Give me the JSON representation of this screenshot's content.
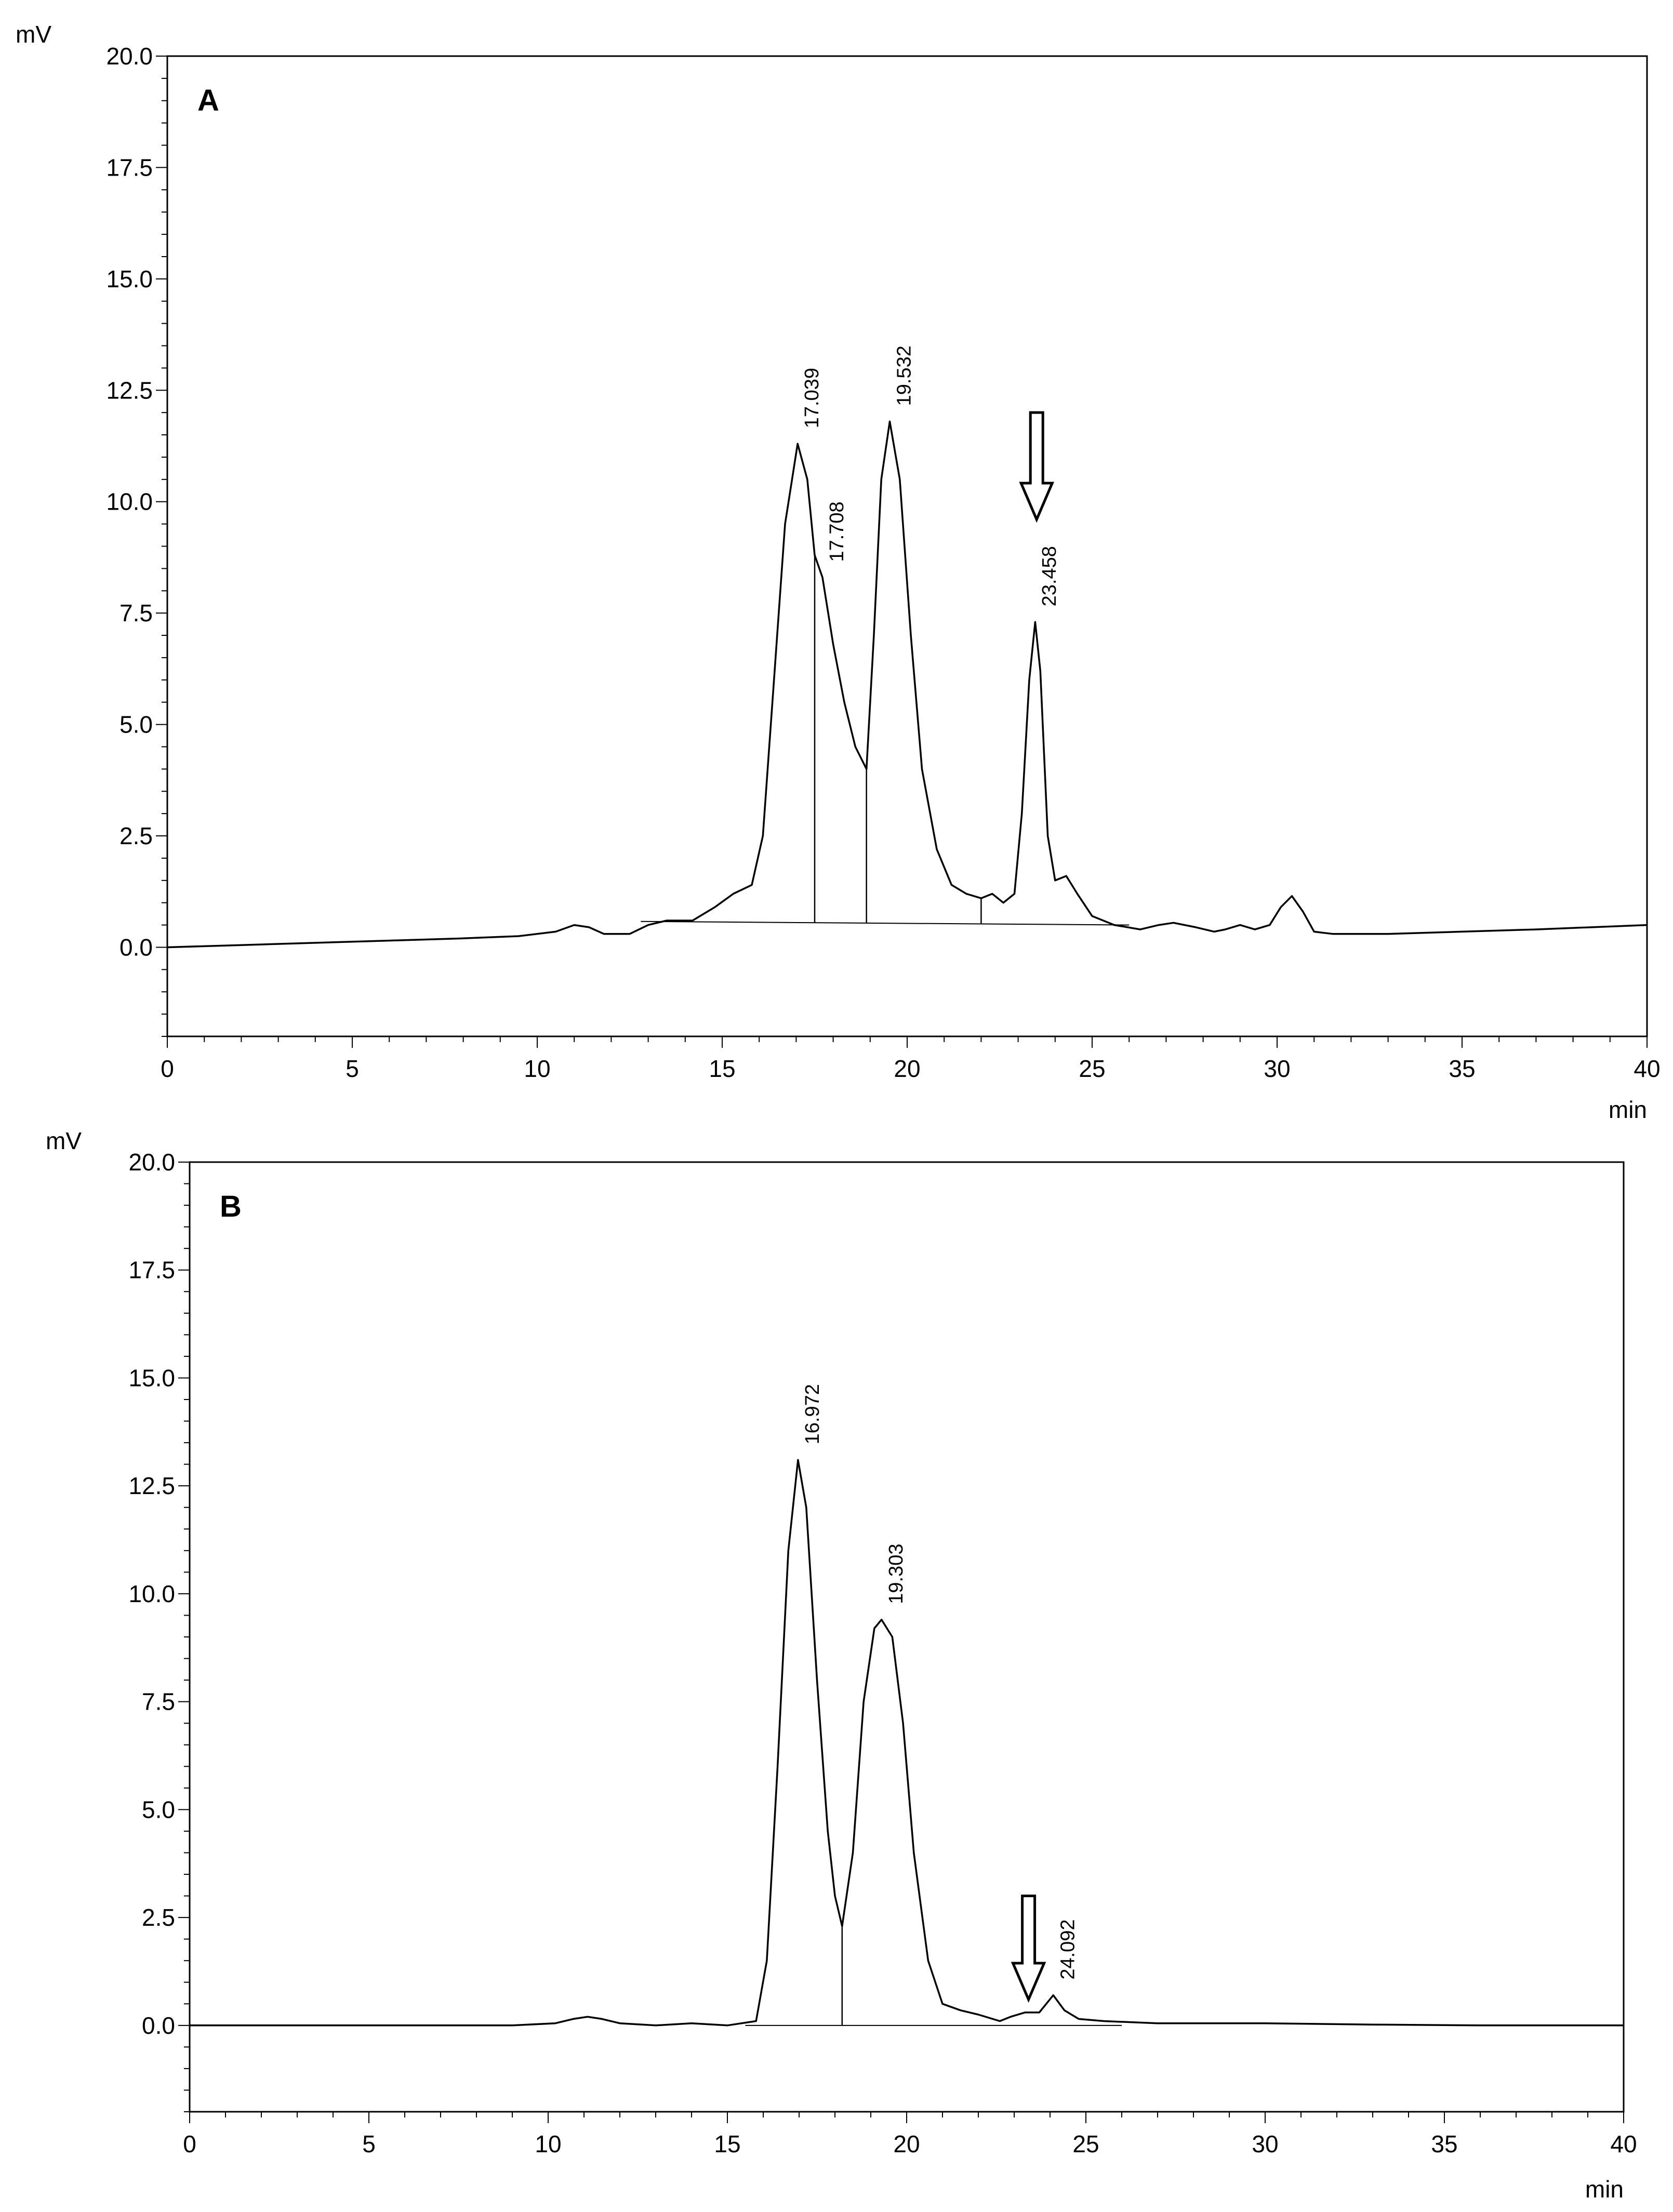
{
  "chart_data": [
    {
      "type": "line",
      "panel_label": "A",
      "y_unit": "mV",
      "x_unit": "min",
      "xlim": [
        0,
        40
      ],
      "ylim": [
        -2,
        20
      ],
      "x_ticks": [
        0,
        5,
        10,
        15,
        20,
        25,
        30,
        35,
        40
      ],
      "x_tick_labels": [
        "0",
        "5",
        "10",
        "15",
        "20",
        "25",
        "30",
        "35",
        "40"
      ],
      "y_ticks": [
        0,
        2.5,
        5,
        7.5,
        10,
        12.5,
        15,
        17.5,
        20
      ],
      "y_tick_labels": [
        "0.0",
        "2.5",
        "5.0",
        "7.5",
        "10.0",
        "12.5",
        "15.0",
        "17.5",
        "20.0"
      ],
      "grid": false,
      "line_color": "#000000",
      "series": [
        {
          "values": [
            [
              0,
              0
            ],
            [
              2,
              0.05
            ],
            [
              4,
              0.1
            ],
            [
              6,
              0.15
            ],
            [
              8,
              0.2
            ],
            [
              9.5,
              0.25
            ],
            [
              10.5,
              0.35
            ],
            [
              11,
              0.5
            ],
            [
              11.4,
              0.45
            ],
            [
              11.8,
              0.3
            ],
            [
              12.5,
              0.3
            ],
            [
              13,
              0.5
            ],
            [
              13.5,
              0.6
            ],
            [
              14.2,
              0.6
            ],
            [
              14.8,
              0.9
            ],
            [
              15.3,
              1.2
            ],
            [
              15.8,
              1.4
            ],
            [
              16.1,
              2.5
            ],
            [
              16.4,
              6.0
            ],
            [
              16.7,
              9.5
            ],
            [
              17.04,
              11.3
            ],
            [
              17.3,
              10.5
            ],
            [
              17.5,
              8.8
            ],
            [
              17.71,
              8.3
            ],
            [
              18.0,
              6.8
            ],
            [
              18.3,
              5.5
            ],
            [
              18.6,
              4.5
            ],
            [
              18.9,
              4.0
            ],
            [
              19.1,
              7.0
            ],
            [
              19.3,
              10.5
            ],
            [
              19.53,
              11.8
            ],
            [
              19.8,
              10.5
            ],
            [
              20.1,
              7.0
            ],
            [
              20.4,
              4.0
            ],
            [
              20.8,
              2.2
            ],
            [
              21.2,
              1.4
            ],
            [
              21.6,
              1.2
            ],
            [
              22.0,
              1.1
            ],
            [
              22.3,
              1.2
            ],
            [
              22.6,
              1.0
            ],
            [
              22.9,
              1.2
            ],
            [
              23.1,
              3.0
            ],
            [
              23.3,
              6.0
            ],
            [
              23.46,
              7.3
            ],
            [
              23.6,
              6.2
            ],
            [
              23.8,
              2.5
            ],
            [
              24.0,
              1.5
            ],
            [
              24.3,
              1.6
            ],
            [
              24.6,
              1.2
            ],
            [
              25.0,
              0.7
            ],
            [
              25.6,
              0.5
            ],
            [
              26.3,
              0.4
            ],
            [
              26.8,
              0.5
            ],
            [
              27.2,
              0.55
            ],
            [
              27.5,
              0.5
            ],
            [
              27.8,
              0.45
            ],
            [
              28.3,
              0.35
            ],
            [
              28.6,
              0.4
            ],
            [
              29.0,
              0.5
            ],
            [
              29.4,
              0.4
            ],
            [
              29.8,
              0.5
            ],
            [
              30.1,
              0.9
            ],
            [
              30.4,
              1.15
            ],
            [
              30.7,
              0.8
            ],
            [
              31.0,
              0.35
            ],
            [
              31.5,
              0.3
            ],
            [
              33,
              0.3
            ],
            [
              35,
              0.35
            ],
            [
              37,
              0.4
            ],
            [
              40,
              0.5
            ]
          ]
        }
      ],
      "baselines": [
        [
          [
            12.8,
            0.58
          ],
          [
            26.0,
            0.5
          ]
        ]
      ],
      "drop_lines_x": [
        17.5,
        18.9,
        22.0
      ],
      "peak_labels": [
        {
          "x": 17.039,
          "y": 11.3,
          "text": "17.039"
        },
        {
          "x": 17.708,
          "y": 8.3,
          "text": "17.708"
        },
        {
          "x": 19.532,
          "y": 11.8,
          "text": "19.532"
        },
        {
          "x": 23.458,
          "y": 7.3,
          "text": "23.458"
        }
      ],
      "arrow": {
        "x": 23.5,
        "y_top": 12.0,
        "y_bottom": 9.6
      }
    },
    {
      "type": "line",
      "panel_label": "B",
      "y_unit": "mV",
      "x_unit": "min",
      "xlim": [
        0,
        40
      ],
      "ylim": [
        -2,
        20
      ],
      "x_ticks": [
        0,
        5,
        10,
        15,
        20,
        25,
        30,
        35,
        40
      ],
      "x_tick_labels": [
        "0",
        "5",
        "10",
        "15",
        "20",
        "25",
        "30",
        "35",
        "40"
      ],
      "y_ticks": [
        0,
        2.5,
        5,
        7.5,
        10,
        12.5,
        15,
        17.5,
        20
      ],
      "y_tick_labels": [
        "0.0",
        "2.5",
        "5.0",
        "7.5",
        "10.0",
        "12.5",
        "15.0",
        "17.5",
        "20.0"
      ],
      "grid": false,
      "line_color": "#000000",
      "series": [
        {
          "values": [
            [
              0,
              0
            ],
            [
              5,
              0
            ],
            [
              9,
              0
            ],
            [
              10.2,
              0.05
            ],
            [
              10.7,
              0.15
            ],
            [
              11.1,
              0.2
            ],
            [
              11.5,
              0.15
            ],
            [
              12.0,
              0.05
            ],
            [
              13.0,
              0.0
            ],
            [
              14.0,
              0.05
            ],
            [
              15.0,
              0.0
            ],
            [
              15.8,
              0.1
            ],
            [
              16.1,
              1.5
            ],
            [
              16.4,
              6.0
            ],
            [
              16.7,
              11.0
            ],
            [
              16.97,
              13.1
            ],
            [
              17.2,
              12.0
            ],
            [
              17.5,
              8.0
            ],
            [
              17.8,
              4.5
            ],
            [
              18.0,
              3.0
            ],
            [
              18.2,
              2.3
            ],
            [
              18.5,
              4.0
            ],
            [
              18.8,
              7.5
            ],
            [
              19.1,
              9.2
            ],
            [
              19.3,
              9.4
            ],
            [
              19.6,
              9.0
            ],
            [
              19.9,
              7.0
            ],
            [
              20.2,
              4.0
            ],
            [
              20.6,
              1.5
            ],
            [
              21.0,
              0.5
            ],
            [
              21.5,
              0.35
            ],
            [
              22.0,
              0.25
            ],
            [
              22.6,
              0.1
            ],
            [
              22.9,
              0.2
            ],
            [
              23.3,
              0.3
            ],
            [
              23.7,
              0.3
            ],
            [
              24.09,
              0.7
            ],
            [
              24.4,
              0.35
            ],
            [
              24.8,
              0.15
            ],
            [
              25.5,
              0.1
            ],
            [
              27,
              0.05
            ],
            [
              30,
              0.05
            ],
            [
              33,
              0.02
            ],
            [
              36,
              0
            ],
            [
              40,
              0
            ]
          ]
        }
      ],
      "baselines": [
        [
          [
            15.5,
            0.0
          ],
          [
            26.0,
            0.0
          ]
        ]
      ],
      "drop_lines_x": [
        18.2
      ],
      "peak_labels": [
        {
          "x": 16.972,
          "y": 13.1,
          "text": "16.972"
        },
        {
          "x": 19.303,
          "y": 9.4,
          "text": "19.303"
        },
        {
          "x": 24.092,
          "y": 0.7,
          "text": "24.092"
        }
      ],
      "arrow": {
        "x": 23.4,
        "y_top": 3.0,
        "y_bottom": 0.6
      }
    }
  ]
}
